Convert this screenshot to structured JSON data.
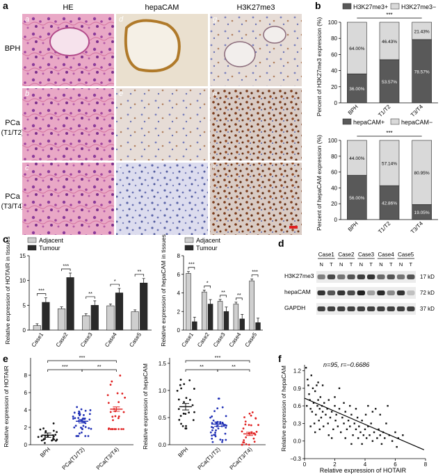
{
  "panel_letters": {
    "a": "a",
    "b": "b",
    "c": "c",
    "d": "d",
    "e": "e",
    "f": "f"
  },
  "micro": {
    "col_headers": [
      "HE",
      "hepaCAM",
      "H3K27me3"
    ],
    "row_labels": [
      [
        "BPH"
      ],
      [
        "PCa",
        "(T1/T2)"
      ],
      [
        "PCa",
        "(T3/T4)"
      ]
    ],
    "tile_letters": [
      "a",
      "d",
      "g",
      "b",
      "e",
      "h",
      "c",
      "f",
      "i"
    ]
  },
  "panel_b": {
    "top": {
      "legend": [
        "H3K27me3+",
        "H3K27me3−"
      ],
      "ylabel": "Percent of H3K27me3 expression (%)",
      "yticks": [
        "0",
        "20",
        "40",
        "60",
        "80",
        "100"
      ],
      "categories": [
        "BPH",
        "T1/T2",
        "T3/T4"
      ],
      "bottom_pct": [
        36.0,
        53.57,
        78.57
      ],
      "bottom_labels": [
        "36.00%",
        "53.57%",
        "78.57%"
      ],
      "top_labels": [
        "64.00%",
        "46.43%",
        "21.43%"
      ],
      "sig": "***"
    },
    "bottom": {
      "legend": [
        "hepaCAM+",
        "hepaCAM−"
      ],
      "ylabel": "Percent of hepaCAM expression (%)",
      "yticks": [
        "0",
        "20",
        "40",
        "60",
        "80",
        "100"
      ],
      "categories": [
        "BPH",
        "T1/T2",
        "T3/T4"
      ],
      "bottom_pct": [
        56.0,
        42.86,
        19.05
      ],
      "bottom_labels": [
        "56.00%",
        "42.86%",
        "19.05%"
      ],
      "top_labels": [
        "44.00%",
        "57.14%",
        "80.95%"
      ],
      "sig": "***"
    }
  },
  "panel_c": {
    "legend": [
      "Adjacent",
      "Tumour"
    ],
    "cases": [
      "Case1",
      "Case2",
      "Case3",
      "Case4",
      "Case5"
    ],
    "left": {
      "ylabel": "Relative expression of HOTAIR in tissues",
      "yticks": [
        "0",
        "5",
        "10",
        "15"
      ],
      "adjacent": [
        0.9,
        4.3,
        2.9,
        4.9,
        3.7
      ],
      "tumour": [
        5.6,
        10.6,
        5.0,
        7.5,
        9.5
      ],
      "sig": [
        "***",
        "***",
        "**",
        "*",
        "**"
      ]
    },
    "right": {
      "ylabel": "Relative expression of hepaCAM in tissues",
      "yticks": [
        "0",
        "2",
        "4",
        "6",
        "8"
      ],
      "adjacent": [
        6.1,
        4.1,
        3.1,
        2.8,
        5.3
      ],
      "tumour": [
        0.9,
        2.8,
        2.0,
        1.2,
        0.8
      ],
      "sig": [
        "***",
        "*",
        "**",
        "**",
        "***"
      ]
    }
  },
  "panel_d": {
    "cases": [
      "Case1",
      "Case2",
      "Case3",
      "Case4",
      "Case5"
    ],
    "lanes": [
      "N",
      "T",
      "N",
      "T",
      "N",
      "T",
      "N",
      "T",
      "N",
      "T"
    ],
    "proteins": [
      "H3K27me3",
      "hepaCAM",
      "GAPDH"
    ],
    "sizes": [
      "17 kD",
      "72 kD",
      "37 kD"
    ],
    "band_intensity": {
      "H3K27me3": [
        0.5,
        0.75,
        0.55,
        0.7,
        0.8,
        0.85,
        0.6,
        0.7,
        0.55,
        0.7
      ],
      "hepaCAM": [
        0.85,
        0.7,
        0.85,
        0.75,
        0.95,
        0.35,
        0.9,
        0.45,
        0.85,
        0.2
      ],
      "GAPDH": [
        0.8,
        0.8,
        0.8,
        0.8,
        0.8,
        0.8,
        0.8,
        0.8,
        0.8,
        0.8
      ]
    }
  },
  "panel_e": {
    "categories": [
      "BPH",
      "PCa(T1/T2)",
      "PCa(T3/T4)"
    ],
    "colors": [
      "#111111",
      "#1f2fb5",
      "#e02020"
    ],
    "left": {
      "ylabel": "Relative expression of HOTAIR",
      "yticks": [
        "0",
        "2",
        "4",
        "6",
        "8"
      ],
      "means": [
        1.1,
        2.7,
        4.1
      ],
      "sem": [
        0.25,
        0.2,
        0.25
      ],
      "spread": [
        [
          0.2,
          2.5
        ],
        [
          1.0,
          5.0
        ],
        [
          1.8,
          8.8
        ]
      ],
      "n": [
        25,
        42,
        28
      ],
      "sig": [
        {
          "between": [
            0,
            1
          ],
          "label": "***"
        },
        {
          "between": [
            1,
            2
          ],
          "label": "**"
        },
        {
          "between": [
            0,
            2
          ],
          "label": "***"
        }
      ]
    },
    "right": {
      "ylabel": "Relative expression of hepaCAM",
      "yticks": [
        "0.0",
        "0.5",
        "1.0",
        "1.5"
      ],
      "means": [
        0.7,
        0.38,
        0.2
      ],
      "sem": [
        0.06,
        0.04,
        0.03
      ],
      "spread": [
        [
          0.3,
          1.3
        ],
        [
          0.05,
          0.85
        ],
        [
          0.0,
          0.7
        ]
      ],
      "n": [
        25,
        42,
        28
      ],
      "sig": [
        {
          "between": [
            0,
            1
          ],
          "label": "**"
        },
        {
          "between": [
            1,
            2
          ],
          "label": "**"
        },
        {
          "between": [
            0,
            2
          ],
          "label": "***"
        }
      ]
    }
  },
  "chart_data": {
    "type": "scatter",
    "annotation": "n=95, r=−0.6686",
    "xlabel": "Relative expression of HOTAIR",
    "ylabel": "Relative expression of hepaCAM",
    "xticks": [
      "0",
      "2",
      "4",
      "6",
      "8"
    ],
    "yticks": [
      "−0.3",
      "0.0",
      "0.3",
      "0.6",
      "0.9",
      "1.2"
    ],
    "xlim": [
      0,
      8
    ],
    "ylim": [
      -0.3,
      1.3
    ],
    "fit": {
      "x": [
        0,
        7.9
      ],
      "y": [
        0.73,
        -0.15
      ]
    },
    "points": [
      [
        0.1,
        1.25
      ],
      [
        0.15,
        0.6
      ],
      [
        0.2,
        1.05
      ],
      [
        0.25,
        0.95
      ],
      [
        0.3,
        0.8
      ],
      [
        0.35,
        0.7
      ],
      [
        0.4,
        0.55
      ],
      [
        0.45,
        1.12
      ],
      [
        0.5,
        0.5
      ],
      [
        0.55,
        0.9
      ],
      [
        0.6,
        0.65
      ],
      [
        0.65,
        0.3
      ],
      [
        0.7,
        0.85
      ],
      [
        0.75,
        0.45
      ],
      [
        0.8,
        0.95
      ],
      [
        0.85,
        0.6
      ],
      [
        0.9,
        0.7
      ],
      [
        0.95,
        0.35
      ],
      [
        1.0,
        0.55
      ],
      [
        1.05,
        0.75
      ],
      [
        1.1,
        0.4
      ],
      [
        1.15,
        0.6
      ],
      [
        1.2,
        0.5
      ],
      [
        1.25,
        0.25
      ],
      [
        1.3,
        0.65
      ],
      [
        1.4,
        0.45
      ],
      [
        1.5,
        0.55
      ],
      [
        1.55,
        0.3
      ],
      [
        1.6,
        0.7
      ],
      [
        1.7,
        0.4
      ],
      [
        1.8,
        0.5
      ],
      [
        1.9,
        0.2
      ],
      [
        2.0,
        0.6
      ],
      [
        2.05,
        0.35
      ],
      [
        2.1,
        0.45
      ],
      [
        2.2,
        0.25
      ],
      [
        2.3,
        0.55
      ],
      [
        2.4,
        0.15
      ],
      [
        2.5,
        0.4
      ],
      [
        2.6,
        0.3
      ],
      [
        2.7,
        0.5
      ],
      [
        2.8,
        0.2
      ],
      [
        2.9,
        0.35
      ],
      [
        3.0,
        0.25
      ],
      [
        3.1,
        0.45
      ],
      [
        3.2,
        0.1
      ],
      [
        3.3,
        0.3
      ],
      [
        3.4,
        0.2
      ],
      [
        3.5,
        0.4
      ],
      [
        3.55,
        0.05
      ],
      [
        3.6,
        0.25
      ],
      [
        3.7,
        0.15
      ],
      [
        3.8,
        0.35
      ],
      [
        3.9,
        0.1
      ],
      [
        4.0,
        0.2
      ],
      [
        4.05,
        0.45
      ],
      [
        4.1,
        0.05
      ],
      [
        4.2,
        0.25
      ],
      [
        4.3,
        0.1
      ],
      [
        4.4,
        0.3
      ],
      [
        4.5,
        0.0
      ],
      [
        4.6,
        0.15
      ],
      [
        4.7,
        0.55
      ],
      [
        4.8,
        0.05
      ],
      [
        4.9,
        0.2
      ],
      [
        5.0,
        0.1
      ],
      [
        5.1,
        -0.05
      ],
      [
        5.2,
        0.15
      ],
      [
        5.3,
        0.05
      ],
      [
        5.5,
        0.6
      ],
      [
        5.6,
        0.1
      ],
      [
        5.8,
        0.0
      ],
      [
        6.0,
        0.15
      ],
      [
        6.2,
        0.05
      ],
      [
        6.5,
        0.1
      ],
      [
        2.3,
        0.9
      ],
      [
        1.2,
        0.95
      ],
      [
        3.0,
        0.6
      ],
      [
        0.9,
        1.0
      ],
      [
        4.5,
        0.5
      ],
      [
        2.7,
        0.05
      ],
      [
        1.6,
        0.1
      ],
      [
        3.8,
        -0.05
      ],
      [
        5.0,
        0.45
      ],
      [
        0.4,
        0.25
      ],
      [
        2.0,
        0.75
      ],
      [
        3.4,
        0.55
      ],
      [
        1.0,
        0.2
      ],
      [
        6.1,
        -0.1
      ],
      [
        2.6,
        0.65
      ],
      [
        4.2,
        0.6
      ],
      [
        1.8,
        0.05
      ],
      [
        3.1,
        -0.05
      ],
      [
        0.7,
        0.15
      ],
      [
        5.4,
        0.3
      ]
    ]
  }
}
